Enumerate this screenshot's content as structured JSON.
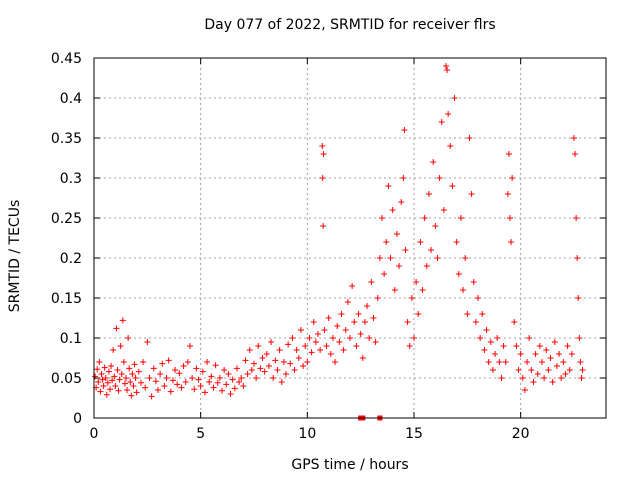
{
  "chart_data": {
    "type": "scatter",
    "title": "Day 077 of 2022, SRMTID for receiver flrs",
    "xlabel": "GPS time / hours",
    "ylabel": "SRMTID / TECUs",
    "xlim": [
      0,
      24
    ],
    "ylim": [
      0,
      0.45
    ],
    "x_ticks": [
      0,
      5,
      10,
      15,
      20
    ],
    "x_tick_labels": [
      "0",
      "5",
      "10",
      "15",
      "20"
    ],
    "y_ticks": [
      0,
      0.05,
      0.1,
      0.15,
      0.2,
      0.25,
      0.3,
      0.35,
      0.4,
      0.45
    ],
    "y_tick_labels": [
      "0",
      "0.05",
      "0.1",
      "0.15",
      "0.2",
      "0.25",
      "0.3",
      "0.35",
      "0.4",
      "0.45"
    ],
    "grid": true,
    "marker": "+",
    "color": "#ff0000",
    "series": [
      {
        "name": "SRMTID",
        "points": [
          [
            0.05,
            0.052
          ],
          [
            0.1,
            0.038
          ],
          [
            0.15,
            0.061
          ],
          [
            0.2,
            0.045
          ],
          [
            0.25,
            0.07
          ],
          [
            0.3,
            0.033
          ],
          [
            0.35,
            0.055
          ],
          [
            0.4,
            0.048
          ],
          [
            0.45,
            0.04
          ],
          [
            0.5,
            0.063
          ],
          [
            0.55,
            0.05
          ],
          [
            0.6,
            0.029
          ],
          [
            0.65,
            0.044
          ],
          [
            0.7,
            0.058
          ],
          [
            0.75,
            0.036
          ],
          [
            0.8,
            0.065
          ],
          [
            0.85,
            0.047
          ],
          [
            0.9,
            0.085
          ],
          [
            0.95,
            0.052
          ],
          [
            1.0,
            0.04
          ],
          [
            1.05,
            0.112
          ],
          [
            1.1,
            0.06
          ],
          [
            1.15,
            0.034
          ],
          [
            1.2,
            0.048
          ],
          [
            1.25,
            0.09
          ],
          [
            1.3,
            0.055
          ],
          [
            1.35,
            0.122
          ],
          [
            1.4,
            0.07
          ],
          [
            1.45,
            0.043
          ],
          [
            1.5,
            0.05
          ],
          [
            1.55,
            0.035
          ],
          [
            1.6,
            0.1
          ],
          [
            1.65,
            0.062
          ],
          [
            1.7,
            0.045
          ],
          [
            1.75,
            0.028
          ],
          [
            1.8,
            0.055
          ],
          [
            1.85,
            0.04
          ],
          [
            1.9,
            0.067
          ],
          [
            1.95,
            0.05
          ],
          [
            2.0,
            0.032
          ],
          [
            2.1,
            0.058
          ],
          [
            2.2,
            0.044
          ],
          [
            2.3,
            0.07
          ],
          [
            2.4,
            0.038
          ],
          [
            2.5,
            0.095
          ],
          [
            2.6,
            0.05
          ],
          [
            2.7,
            0.027
          ],
          [
            2.8,
            0.062
          ],
          [
            2.9,
            0.046
          ],
          [
            3.0,
            0.035
          ],
          [
            3.1,
            0.055
          ],
          [
            3.2,
            0.068
          ],
          [
            3.3,
            0.04
          ],
          [
            3.4,
            0.05
          ],
          [
            3.5,
            0.072
          ],
          [
            3.6,
            0.033
          ],
          [
            3.7,
            0.047
          ],
          [
            3.8,
            0.06
          ],
          [
            3.9,
            0.042
          ],
          [
            4.0,
            0.056
          ],
          [
            4.1,
            0.038
          ],
          [
            4.2,
            0.065
          ],
          [
            4.3,
            0.045
          ],
          [
            4.4,
            0.07
          ],
          [
            4.5,
            0.09
          ],
          [
            4.6,
            0.05
          ],
          [
            4.7,
            0.036
          ],
          [
            4.8,
            0.062
          ],
          [
            4.9,
            0.048
          ],
          [
            5.0,
            0.04
          ],
          [
            5.1,
            0.058
          ],
          [
            5.2,
            0.032
          ],
          [
            5.3,
            0.07
          ],
          [
            5.4,
            0.045
          ],
          [
            5.5,
            0.052
          ],
          [
            5.6,
            0.038
          ],
          [
            5.7,
            0.066
          ],
          [
            5.8,
            0.044
          ],
          [
            5.9,
            0.05
          ],
          [
            6.0,
            0.034
          ],
          [
            6.1,
            0.06
          ],
          [
            6.2,
            0.042
          ],
          [
            6.3,
            0.055
          ],
          [
            6.4,
            0.03
          ],
          [
            6.5,
            0.048
          ],
          [
            6.6,
            0.037
          ],
          [
            6.7,
            0.062
          ],
          [
            6.8,
            0.045
          ],
          [
            6.9,
            0.05
          ],
          [
            7.0,
            0.04
          ],
          [
            7.1,
            0.072
          ],
          [
            7.2,
            0.055
          ],
          [
            7.3,
            0.085
          ],
          [
            7.4,
            0.06
          ],
          [
            7.5,
            0.068
          ],
          [
            7.6,
            0.05
          ],
          [
            7.7,
            0.09
          ],
          [
            7.8,
            0.062
          ],
          [
            7.9,
            0.075
          ],
          [
            8.0,
            0.058
          ],
          [
            8.1,
            0.08
          ],
          [
            8.2,
            0.065
          ],
          [
            8.3,
            0.095
          ],
          [
            8.4,
            0.05
          ],
          [
            8.5,
            0.072
          ],
          [
            8.6,
            0.06
          ],
          [
            8.7,
            0.085
          ],
          [
            8.8,
            0.045
          ],
          [
            8.9,
            0.07
          ],
          [
            9.0,
            0.055
          ],
          [
            9.1,
            0.092
          ],
          [
            9.2,
            0.068
          ],
          [
            9.3,
            0.1
          ],
          [
            9.4,
            0.06
          ],
          [
            9.5,
            0.085
          ],
          [
            9.6,
            0.075
          ],
          [
            9.7,
            0.11
          ],
          [
            9.8,
            0.065
          ],
          [
            9.9,
            0.09
          ],
          [
            10.0,
            0.07
          ],
          [
            10.1,
            0.1
          ],
          [
            10.2,
            0.082
          ],
          [
            10.3,
            0.12
          ],
          [
            10.4,
            0.095
          ],
          [
            10.5,
            0.105
          ],
          [
            10.6,
            0.085
          ],
          [
            10.7,
            0.34
          ],
          [
            10.72,
            0.3
          ],
          [
            10.74,
            0.24
          ],
          [
            10.76,
            0.33
          ],
          [
            10.8,
            0.11
          ],
          [
            10.9,
            0.09
          ],
          [
            11.0,
            0.125
          ],
          [
            11.1,
            0.08
          ],
          [
            11.2,
            0.1
          ],
          [
            11.3,
            0.07
          ],
          [
            11.4,
            0.115
          ],
          [
            11.5,
            0.095
          ],
          [
            11.6,
            0.13
          ],
          [
            11.7,
            0.085
          ],
          [
            11.8,
            0.11
          ],
          [
            11.9,
            0.145
          ],
          [
            12.0,
            0.1
          ],
          [
            12.1,
            0.165
          ],
          [
            12.2,
            0.12
          ],
          [
            12.3,
            0.09
          ],
          [
            12.4,
            0.13
          ],
          [
            12.5,
            0.105
          ],
          [
            12.6,
            0.075
          ],
          [
            12.7,
            0.12
          ],
          [
            12.8,
            0.14
          ],
          [
            12.9,
            0.1
          ],
          [
            13.0,
            0.17
          ],
          [
            13.1,
            0.125
          ],
          [
            13.2,
            0.095
          ],
          [
            13.3,
            0.15
          ],
          [
            13.4,
            0.2
          ],
          [
            13.5,
            0.25
          ],
          [
            13.6,
            0.18
          ],
          [
            13.7,
            0.22
          ],
          [
            13.8,
            0.29
          ],
          [
            13.9,
            0.2
          ],
          [
            14.0,
            0.26
          ],
          [
            14.1,
            0.16
          ],
          [
            14.2,
            0.23
          ],
          [
            14.3,
            0.19
          ],
          [
            14.4,
            0.27
          ],
          [
            14.5,
            0.3
          ],
          [
            14.55,
            0.36
          ],
          [
            14.6,
            0.21
          ],
          [
            14.7,
            0.12
          ],
          [
            14.8,
            0.09
          ],
          [
            14.9,
            0.15
          ],
          [
            15.0,
            0.1
          ],
          [
            15.1,
            0.17
          ],
          [
            15.2,
            0.13
          ],
          [
            15.3,
            0.22
          ],
          [
            15.4,
            0.16
          ],
          [
            15.5,
            0.25
          ],
          [
            15.6,
            0.19
          ],
          [
            15.7,
            0.28
          ],
          [
            15.8,
            0.21
          ],
          [
            15.9,
            0.32
          ],
          [
            16.0,
            0.24
          ],
          [
            16.1,
            0.2
          ],
          [
            16.2,
            0.3
          ],
          [
            16.3,
            0.37
          ],
          [
            16.4,
            0.26
          ],
          [
            16.5,
            0.44
          ],
          [
            16.55,
            0.435
          ],
          [
            16.6,
            0.38
          ],
          [
            16.7,
            0.34
          ],
          [
            16.8,
            0.29
          ],
          [
            16.9,
            0.4
          ],
          [
            17.0,
            0.22
          ],
          [
            17.1,
            0.18
          ],
          [
            17.2,
            0.25
          ],
          [
            17.3,
            0.16
          ],
          [
            17.4,
            0.2
          ],
          [
            17.5,
            0.13
          ],
          [
            17.6,
            0.35
          ],
          [
            17.7,
            0.28
          ],
          [
            17.8,
            0.17
          ],
          [
            17.9,
            0.12
          ],
          [
            18.0,
            0.15
          ],
          [
            18.1,
            0.1
          ],
          [
            18.2,
            0.13
          ],
          [
            18.3,
            0.085
          ],
          [
            18.4,
            0.11
          ],
          [
            18.5,
            0.07
          ],
          [
            18.6,
            0.095
          ],
          [
            18.7,
            0.06
          ],
          [
            18.8,
            0.08
          ],
          [
            18.9,
            0.1
          ],
          [
            19.0,
            0.07
          ],
          [
            19.1,
            0.05
          ],
          [
            19.2,
            0.09
          ],
          [
            19.3,
            0.07
          ],
          [
            19.4,
            0.28
          ],
          [
            19.45,
            0.33
          ],
          [
            19.5,
            0.25
          ],
          [
            19.55,
            0.22
          ],
          [
            19.6,
            0.3
          ],
          [
            19.7,
            0.12
          ],
          [
            19.8,
            0.09
          ],
          [
            19.9,
            0.06
          ],
          [
            20.0,
            0.08
          ],
          [
            20.1,
            0.05
          ],
          [
            20.2,
            0.035
          ],
          [
            20.3,
            0.07
          ],
          [
            20.4,
            0.1
          ],
          [
            20.5,
            0.06
          ],
          [
            20.6,
            0.045
          ],
          [
            20.7,
            0.08
          ],
          [
            20.8,
            0.055
          ],
          [
            20.9,
            0.09
          ],
          [
            21.0,
            0.07
          ],
          [
            21.1,
            0.05
          ],
          [
            21.2,
            0.085
          ],
          [
            21.3,
            0.06
          ],
          [
            21.4,
            0.075
          ],
          [
            21.5,
            0.045
          ],
          [
            21.6,
            0.095
          ],
          [
            21.7,
            0.065
          ],
          [
            21.8,
            0.08
          ],
          [
            21.9,
            0.05
          ],
          [
            22.0,
            0.07
          ],
          [
            22.1,
            0.055
          ],
          [
            22.2,
            0.09
          ],
          [
            22.3,
            0.06
          ],
          [
            22.4,
            0.08
          ],
          [
            22.5,
            0.35
          ],
          [
            22.55,
            0.33
          ],
          [
            22.6,
            0.25
          ],
          [
            22.65,
            0.2
          ],
          [
            22.7,
            0.15
          ],
          [
            22.75,
            0.1
          ],
          [
            22.8,
            0.07
          ],
          [
            22.85,
            0.05
          ],
          [
            22.9,
            0.06
          ]
        ]
      }
    ],
    "bottom_markers_x": [
      12.5,
      12.6,
      13.4
    ]
  }
}
